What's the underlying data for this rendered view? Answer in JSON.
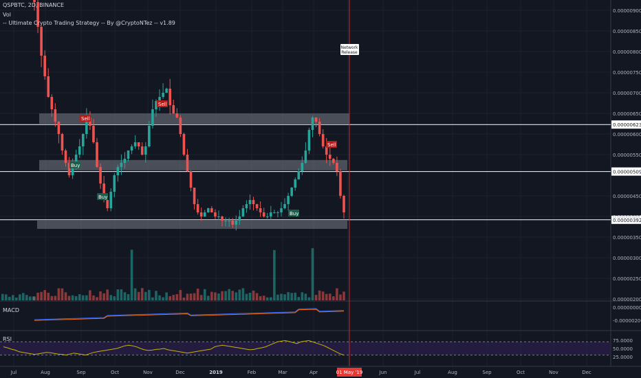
{
  "header": {
    "symbol_line": "QSPBTC, 2D, BINANCE",
    "strategy_line": "-- Ultimate Crypto Trading Strategy -- By @CryptoNTez -- v1.89",
    "vol_label": "Vol"
  },
  "panes": {
    "macd_label": "MACD",
    "rsi_label": "RSI"
  },
  "colors": {
    "background": "#131722",
    "up": "#26a69a",
    "down": "#ef5350",
    "zone": "#787b86",
    "level_line": "#ffffff",
    "rsi_line": "#c8b400",
    "rsi_band": "#2a1f4a",
    "macd_line": "#2962ff",
    "signal_line": "#ff6d00",
    "marker_line": "#c62828"
  },
  "chart_data": {
    "type": "candlestick",
    "price_axis": {
      "ticks": [
        "0.00000900",
        "0.00000850",
        "0.00000800",
        "0.00000750",
        "0.00000700",
        "0.00000650",
        "0.00000600",
        "0.00000550",
        "0.00000450",
        "0.00000400",
        "0.00000350",
        "0.00000300",
        "0.00000250",
        "0.00000200"
      ],
      "ylim": [
        1.95e-06,
        9.25e-06
      ]
    },
    "level_labels": [
      "0.00000623",
      "0.00000509",
      "0.00000392"
    ],
    "levels": [
      6.23e-06,
      5.09e-06,
      3.92e-06
    ],
    "zones": [
      [
        6.25e-06,
        6.5e-06
      ],
      [
        5.12e-06,
        5.37e-06
      ],
      [
        3.7e-06,
        3.9e-06
      ]
    ],
    "macd_axis": {
      "ticks": [
        "0.00000000",
        "-0.00000200"
      ]
    },
    "rsi_axis": {
      "ticks": [
        "75.0000",
        "50.0000",
        "25.0000"
      ],
      "ylim": [
        0,
        100
      ],
      "bands": [
        30,
        70
      ]
    },
    "time_axis": {
      "labels": [
        "Jul",
        "Aug",
        "Sep",
        "Oct",
        "Nov",
        "Dec",
        "2019",
        "Feb",
        "Mar",
        "Apr",
        "May",
        "Jun",
        "Jul",
        "Aug",
        "Sep",
        "Oct",
        "Nov",
        "Dec"
      ]
    },
    "current_date": "01 May '19",
    "event": {
      "label": "Network Release"
    },
    "signals": [
      {
        "text": "Sell",
        "kind": "sell"
      },
      {
        "text": "Buy",
        "kind": "buy"
      },
      {
        "text": "Buy",
        "kind": "buy"
      },
      {
        "text": "Sell",
        "kind": "sell"
      },
      {
        "text": "Buy",
        "kind": "buy"
      },
      {
        "text": "Sell",
        "kind": "sell"
      }
    ],
    "price_path": [
      9.2e-06,
      8.6e-06,
      7.9e-06,
      7.4e-06,
      6.9e-06,
      6.6e-06,
      6.3e-06,
      6e-06,
      5.6e-06,
      5.3e-06,
      5e-06,
      5.2e-06,
      5.5e-06,
      5.7e-06,
      6e-06,
      6.4e-06,
      6.2e-06,
      5.8e-06,
      5.2e-06,
      4.8e-06,
      4.4e-06,
      4.2e-06,
      4.6e-06,
      5e-06,
      5.2e-06,
      5.3e-06,
      5.4e-06,
      5.6e-06,
      5.7e-06,
      5.8e-06,
      5.7e-06,
      5.5e-06,
      5.7e-06,
      6.2e-06,
      6.6e-06,
      6.8e-06,
      6.9e-06,
      7e-06,
      7.1e-06,
      6.7e-06,
      6.5e-06,
      6.4e-06,
      6e-06,
      5.5e-06,
      5.1e-06,
      4.7e-06,
      4.3e-06,
      4.1e-06,
      4e-06,
      4.1e-06,
      4.2e-06,
      4.1e-06,
      4e-06,
      4e-06,
      3.9e-06,
      3.9e-06,
      3.9e-06,
      3.8e-06,
      3.9e-06,
      4e-06,
      4.2e-06,
      4.3e-06,
      4.4e-06,
      4.3e-06,
      4.2e-06,
      4.1e-06,
      4e-06,
      4e-06,
      4.1e-06,
      4.1e-06,
      4.1e-06,
      4.2e-06,
      4.3e-06,
      4.5e-06,
      4.7e-06,
      4.9e-06,
      5.1e-06,
      5.3e-06,
      5.6e-06,
      6.1e-06,
      6.4e-06,
      6.3e-06,
      6e-06,
      5.7e-06,
      5.5e-06,
      5.4e-06,
      5.3e-06,
      5.1e-06,
      4.5e-06,
      4.1e-06
    ],
    "rsi_path": [
      55,
      52,
      48,
      45,
      40,
      38,
      36,
      34,
      32,
      34,
      36,
      38,
      37,
      35,
      33,
      32,
      30,
      33,
      36,
      34,
      32,
      30,
      34,
      38,
      40,
      42,
      44,
      46,
      48,
      50,
      54,
      58,
      60,
      58,
      55,
      50,
      46,
      44,
      45,
      47,
      48,
      50,
      46,
      44,
      42,
      40,
      38,
      36,
      38,
      40,
      42,
      44,
      46,
      48,
      55,
      58,
      60,
      58,
      56,
      54,
      52,
      50,
      48,
      46,
      47,
      50,
      52,
      55,
      60,
      65,
      70,
      72,
      74,
      71,
      68,
      65,
      70,
      72,
      74,
      70,
      66,
      62,
      58,
      52,
      46,
      40,
      34,
      30
    ]
  }
}
